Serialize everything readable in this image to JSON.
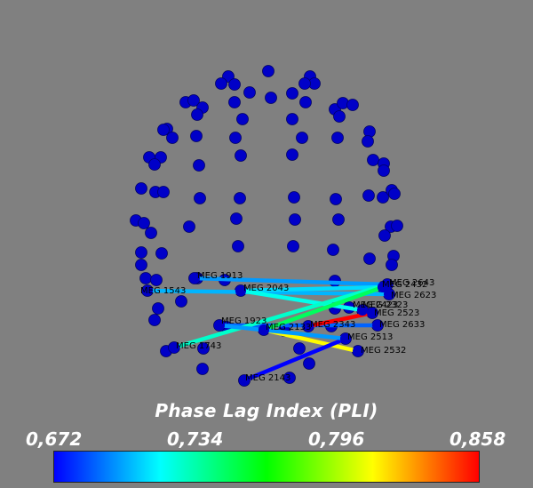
{
  "colors": {
    "background": "#808080",
    "sensor": "#0000c8",
    "colormap": [
      "#0000ff",
      "#00ffff",
      "#00ff00",
      "#ffff00",
      "#ff0000"
    ]
  },
  "colorbar": {
    "title": "Phase Lag Index (PLI)",
    "min": 0.672,
    "max": 0.858,
    "ticks": [
      "0,672",
      "0,734",
      "0,796",
      "0,858"
    ]
  },
  "sensor_labels": [
    "MEG 1913",
    "MEG 2043",
    "MEG 1543",
    "MEG 1923",
    "MEG 2133",
    "MEG 2343",
    "MEG 2143",
    "MEG 2513",
    "MEG 2532",
    "MEG 2633",
    "MEG 2523",
    "MEG 2623",
    "MEG 2643",
    "MEG 2432",
    "MEG 2423",
    "MEG 2323",
    "MEG 1743"
  ],
  "connections": [
    {
      "from": "MEG 1913",
      "to": "MEG 2643",
      "pli": 0.7
    },
    {
      "from": "MEG 1543",
      "to": "MEG 2623",
      "pli": 0.705
    },
    {
      "from": "MEG 2043",
      "to": "MEG 2432",
      "pli": 0.712
    },
    {
      "from": "MEG 2043",
      "to": "MEG 2323",
      "pli": 0.722
    },
    {
      "from": "MEG 1923",
      "to": "MEG 2633",
      "pli": 0.69
    },
    {
      "from": "MEG 1743",
      "to": "MEG 2643",
      "pli": 0.728
    },
    {
      "from": "MEG 2133",
      "to": "MEG 2432",
      "pli": 0.748
    },
    {
      "from": "MEG 2133",
      "to": "MEG 2532",
      "pli": 0.812
    },
    {
      "from": "MEG 2343",
      "to": "MEG 2523",
      "pli": 0.858
    },
    {
      "from": "MEG 2143",
      "to": "MEG 2513",
      "pli": 0.672
    },
    {
      "from": "MEG 1923",
      "to": "MEG 2513",
      "pli": 0.7
    }
  ]
}
